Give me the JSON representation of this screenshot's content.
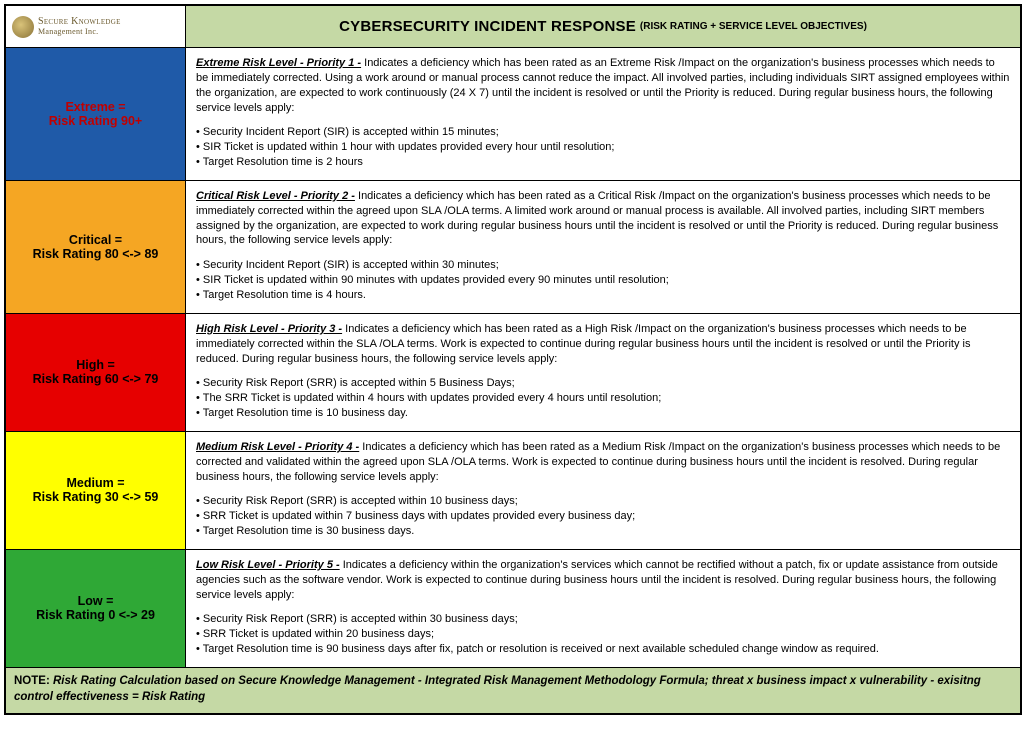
{
  "brand": {
    "line1": "Secure Knowledge",
    "line2": "Management Inc."
  },
  "header": {
    "title_main": "CYBERSECURITY INCIDENT RESPONSE",
    "title_sub": "(RISK RATING + SERVICE LEVEL OBJECTIVES)",
    "bg": "#c5d9a5"
  },
  "rows": [
    {
      "label_line1": "Extreme =",
      "label_line2": "Risk Rating 90+",
      "label_bg": "#1f5aa8",
      "label_color": "#c00000",
      "lead_title": "Extreme Risk Level - Priority 1 -",
      "lead_body": " Indicates a deficiency which has been rated as an Extreme Risk /Impact on the organization's business processes which needs to be immediately corrected. Using a work around or manual process cannot reduce the impact. All involved parties, including individuals SIRT assigned employees within the organization, are expected to work continuously (24 X 7) until the incident is resolved or until the Priority is reduced. During regular business hours, the following service levels apply:",
      "bullets": [
        "Security Incident Report (SIR) is accepted within 15 minutes;",
        "SIR Ticket is updated within 1 hour with updates provided every hour until resolution;",
        "Target Resolution time is 2 hours"
      ]
    },
    {
      "label_line1": "Critical =",
      "label_line2": "Risk Rating 80 <-> 89",
      "label_bg": "#f5a623",
      "label_color": "#000000",
      "lead_title": "Critical Risk Level - Priority 2 -",
      "lead_body": " Indicates a deficiency which has been rated as a Critical Risk /Impact on the organization's business processes which needs to be immediately corrected within the agreed upon SLA /OLA terms. A limited work around or manual process is available. All involved parties, including SIRT members assigned by the organization, are expected to work during regular business hours until the incident is resolved or until the Priority is reduced. During regular business hours, the following service levels apply:",
      "bullets": [
        "Security Incident Report (SIR) is accepted within 30 minutes;",
        "SIR Ticket is updated within 90 minutes with updates provided every 90 minutes until resolution;",
        "Target Resolution time is 4 hours."
      ]
    },
    {
      "label_line1": "High =",
      "label_line2": "Risk Rating 60 <-> 79",
      "label_bg": "#e60000",
      "label_color": "#000000",
      "lead_title": "High Risk Level - Priority 3 -",
      "lead_body": " Indicates a deficiency which has been rated as a High Risk /Impact on the organization's business processes which needs to be immediately corrected within the SLA /OLA terms. Work is expected to continue during regular business hours until the incident is resolved or until the Priority is reduced. During regular business hours, the following service levels apply:",
      "bullets": [
        "Security Risk Report (SRR) is accepted within 5 Business Days;",
        "The SRR Ticket is updated within 4 hours with updates provided every 4 hours until resolution;",
        "Target Resolution time is 10 business day."
      ]
    },
    {
      "label_line1": "Medium =",
      "label_line2": "Risk Rating 30 <-> 59",
      "label_bg": "#ffff00",
      "label_color": "#000000",
      "lead_title": "Medium Risk Level - Priority 4 -",
      "lead_body": " Indicates a deficiency which has been rated as a Medium Risk /Impact on the organization's business processes which needs to be corrected and validated within the agreed upon SLA /OLA terms. Work is expected to continue during business hours until the incident is resolved. During regular business hours, the following service levels apply:",
      "bullets": [
        "Security Risk Report (SRR) is accepted within 10 business days;",
        "SRR Ticket is updated within 7 business days with updates provided every business day;",
        "Target Resolution time is 30 business days."
      ]
    },
    {
      "label_line1": "Low =",
      "label_line2": "Risk Rating 0 <-> 29",
      "label_bg": "#2fa836",
      "label_color": "#000000",
      "lead_title": "Low Risk Level - Priority 5 -",
      "lead_body": " Indicates a deficiency within the organization's services which cannot be rectified without a patch, fix or update assistance from outside agencies such as the software vendor. Work is expected to continue during business hours until the incident is resolved. During regular business hours, the following service levels apply:",
      "bullets": [
        "Security Risk Report (SRR) is accepted within 30 business days;",
        "SRR Ticket is updated within 20 business days;",
        "Target Resolution time is 90 business days after fix, patch or resolution is received or next available scheduled change window as required."
      ]
    }
  ],
  "note": {
    "head": "NOTE:",
    "body": " Risk Rating Calculation based on Secure Knowledge Management - Integrated Risk Management Methodology Formula; threat x business impact x vulnerability - exisitng control effectiveness = Risk Rating",
    "bg": "#c5d9a5"
  }
}
